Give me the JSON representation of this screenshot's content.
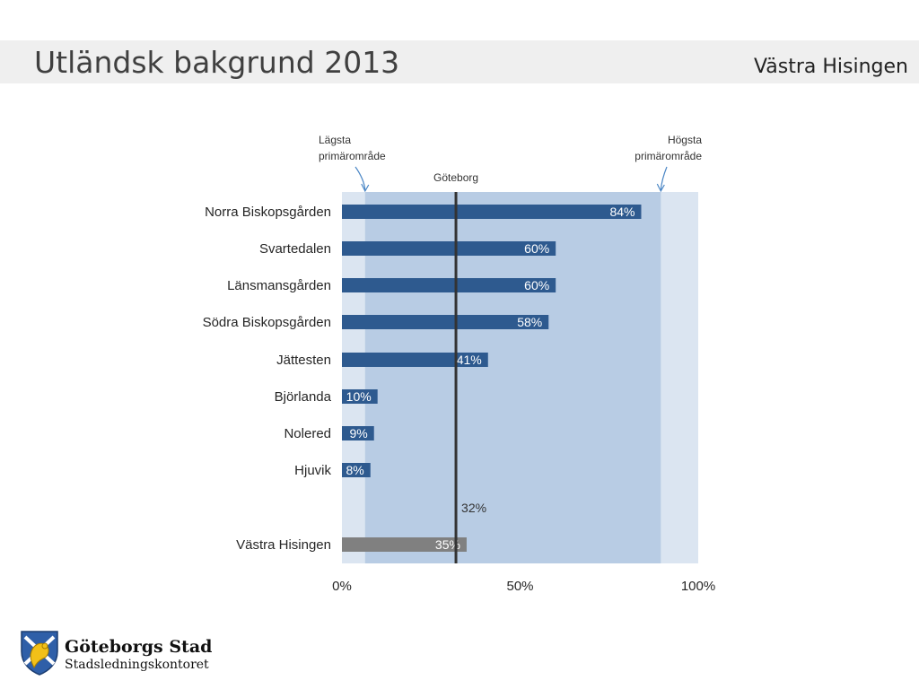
{
  "header": {
    "title": "Utländsk bakgrund 2013",
    "subtitle": "Västra Hisingen"
  },
  "colors": {
    "bar_primary": "#2e5a8f",
    "bar_total": "#808080",
    "range_outer": "#dbe5f1",
    "range_inner": "#b8cce4",
    "reference_line": "#333333",
    "annotation_arrow": "#4a86c5"
  },
  "chart_data": {
    "type": "bar",
    "orientation": "horizontal",
    "categories": [
      "Norra Biskopsgården",
      "Svartedalen",
      "Länsmansgården",
      "Södra Biskopsgården",
      "Jättesten",
      "Björlanda",
      "Nolered",
      "Hjuvik",
      "Västra Hisingen"
    ],
    "values": [
      84,
      60,
      60,
      58,
      41,
      10,
      9,
      8,
      35
    ],
    "value_labels": [
      "84%",
      "60%",
      "60%",
      "58%",
      "41%",
      "10%",
      "9%",
      "8%",
      "35%"
    ],
    "total_category": "Västra Hisingen",
    "xlim": [
      0,
      100
    ],
    "x_ticks": [
      0,
      50,
      100
    ],
    "x_tick_labels": [
      "0%",
      "50%",
      "100%"
    ],
    "reference": {
      "label": "Göteborg",
      "value": 32,
      "value_label": "32%"
    },
    "range": {
      "low": 6.5,
      "high": 89.5
    },
    "annotations": [
      {
        "text": "Lägsta\nprimärområde",
        "value": 6.5
      },
      {
        "text": "Högsta\nprimärområde",
        "value": 89.5
      }
    ]
  },
  "footer": {
    "org_name": "Göteborgs Stad",
    "org_unit": "Stadsledningskontoret"
  }
}
